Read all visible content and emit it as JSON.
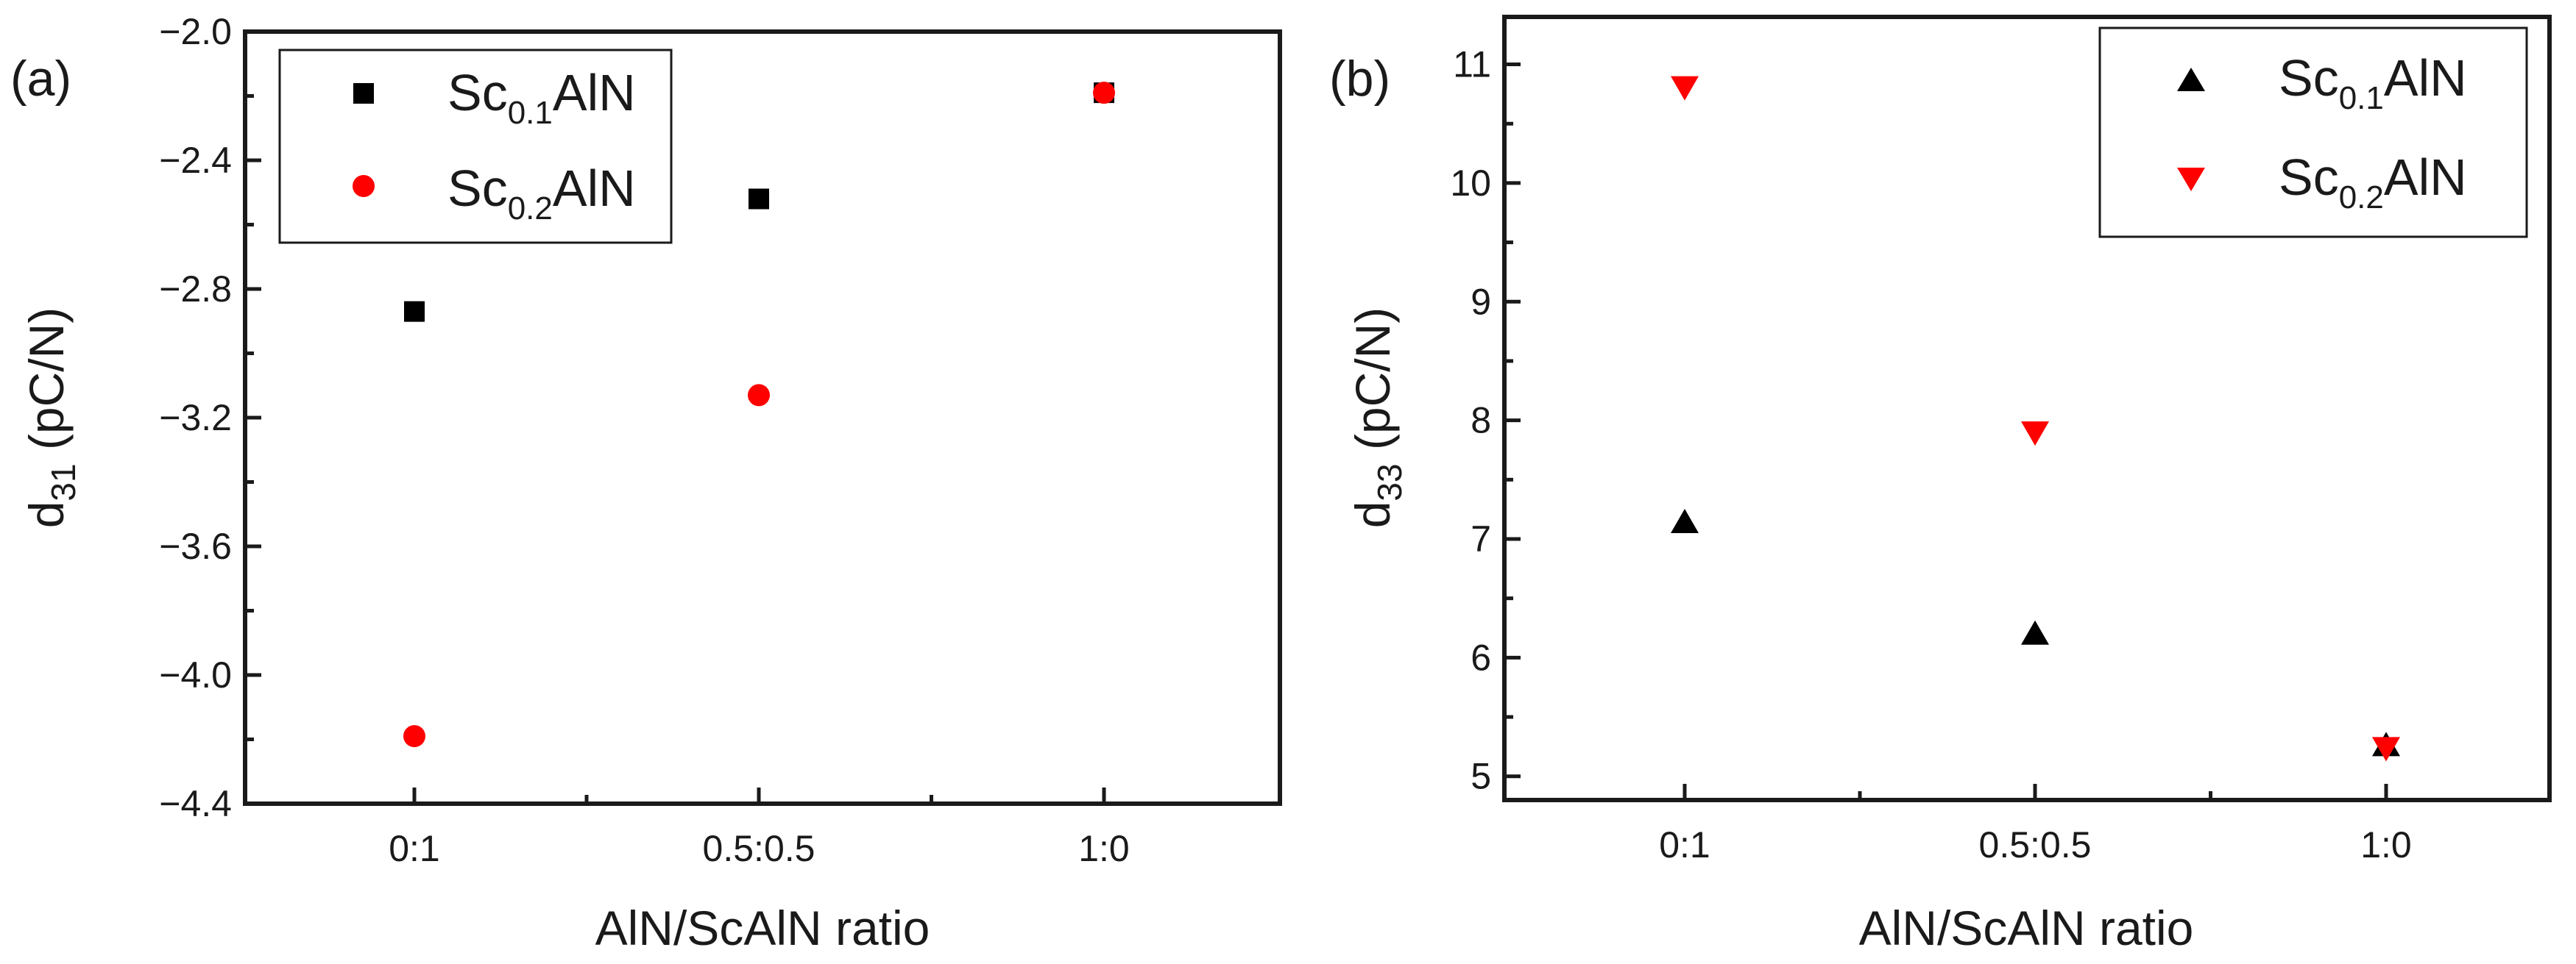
{
  "chart_data": [
    {
      "panel_label": "(a)",
      "type": "scatter",
      "categories": [
        "0:1",
        "0.5:0.5",
        "1:0"
      ],
      "xlabel": "AlN/ScAlN ratio",
      "ylabel": {
        "main": "d",
        "sub": "31",
        "rest": " (pC/N)"
      },
      "ylim": [
        -4.4,
        -2.0
      ],
      "yticks": [
        "-2.0",
        "-2.4",
        "-2.8",
        "-3.2",
        "-3.6",
        "-4.0",
        "-4.4"
      ],
      "ytick_values": [
        -2.0,
        -2.4,
        -2.8,
        -3.2,
        -3.6,
        -4.0,
        -4.4
      ],
      "legend_placement": "top-left",
      "series": [
        {
          "name": {
            "pre": "Sc",
            "sub": "0.1",
            "post": "AlN"
          },
          "marker": "square",
          "color": "#000000",
          "values": [
            -2.87,
            -2.52,
            -2.19
          ]
        },
        {
          "name": {
            "pre": "Sc",
            "sub": "0.2",
            "post": "AlN"
          },
          "marker": "circle",
          "color": "#ff0000",
          "values": [
            -4.19,
            -3.13,
            -2.19
          ]
        }
      ]
    },
    {
      "panel_label": "(b)",
      "type": "scatter",
      "categories": [
        "0:1",
        "0.5:0.5",
        "1:0"
      ],
      "xlabel": "AlN/ScAlN ratio",
      "ylabel": {
        "main": "d",
        "sub": "33",
        "rest": " (pC/N)"
      },
      "ylim": [
        4.8,
        11.4
      ],
      "yticks": [
        "5",
        "6",
        "7",
        "8",
        "9",
        "10",
        "11"
      ],
      "ytick_values": [
        5,
        6,
        7,
        8,
        9,
        10,
        11
      ],
      "legend_placement": "top-right",
      "series": [
        {
          "name": {
            "pre": "Sc",
            "sub": "0.1",
            "post": "AlN"
          },
          "marker": "triangle-up",
          "color": "#000000",
          "values": [
            7.13,
            6.19,
            5.25
          ]
        },
        {
          "name": {
            "pre": "Sc",
            "sub": "0.2",
            "post": "AlN"
          },
          "marker": "triangle-down",
          "color": "#ff0000",
          "values": [
            10.82,
            7.91,
            5.25
          ]
        }
      ]
    }
  ]
}
